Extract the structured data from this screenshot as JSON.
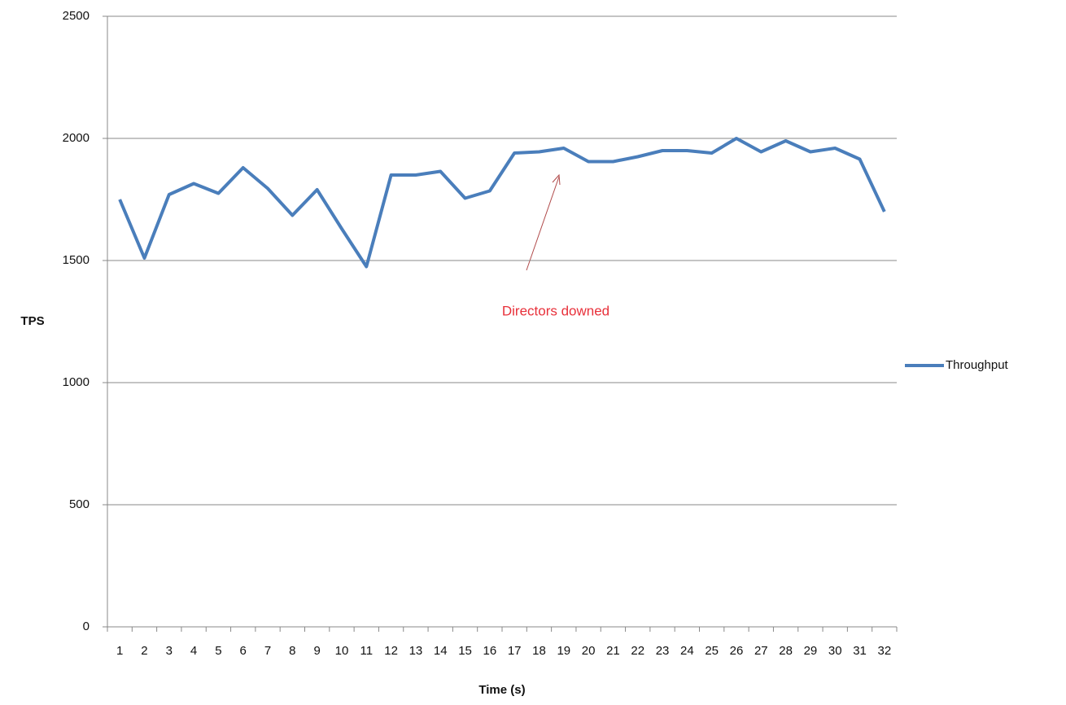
{
  "chart_data": {
    "type": "line",
    "x_label": "Time (s)",
    "y_label": "TPS",
    "annotation": "Directors downed",
    "categories": [
      "1",
      "2",
      "3",
      "4",
      "5",
      "6",
      "7",
      "8",
      "9",
      "10",
      "11",
      "12",
      "13",
      "14",
      "15",
      "16",
      "17",
      "18",
      "19",
      "20",
      "21",
      "22",
      "23",
      "24",
      "25",
      "26",
      "27",
      "28",
      "29",
      "30",
      "31",
      "32"
    ],
    "series": [
      {
        "name": "Throughput",
        "color": "#4a7ebb",
        "values": [
          1750,
          1510,
          1770,
          1815,
          1775,
          1880,
          1795,
          1685,
          1790,
          1630,
          1475,
          1850,
          1850,
          1865,
          1755,
          1785,
          1940,
          1945,
          1960,
          1905,
          1905,
          1925,
          1950,
          1950,
          1940,
          2000,
          1945,
          1990,
          1945,
          1960,
          1915,
          1700
        ]
      }
    ],
    "ylim": [
      0,
      2500
    ],
    "yticks": [
      0,
      500,
      1000,
      1500,
      2000,
      2500
    ],
    "grid": true,
    "legend": "right"
  }
}
